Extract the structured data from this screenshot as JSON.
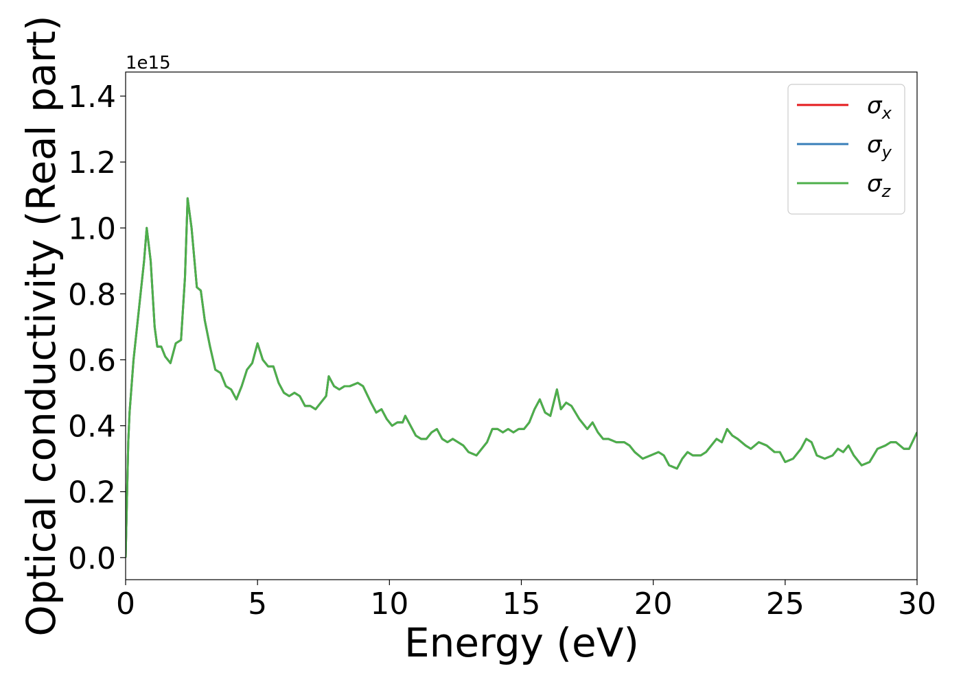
{
  "chart_data": {
    "type": "line",
    "xlabel": "Energy (eV)",
    "ylabel": "Optical conductivity (Real part)",
    "y_offset_label": "1e15",
    "x": [
      0,
      0.1,
      0.15,
      0.3,
      0.5,
      0.7,
      0.8,
      0.95,
      1.1,
      1.2,
      1.35,
      1.5,
      1.7,
      1.9,
      2.1,
      2.25,
      2.35,
      2.5,
      2.7,
      2.85,
      3.0,
      3.2,
      3.4,
      3.6,
      3.8,
      4.0,
      4.2,
      4.4,
      4.6,
      4.8,
      5.0,
      5.2,
      5.4,
      5.6,
      5.8,
      6.0,
      6.2,
      6.4,
      6.6,
      6.8,
      7.0,
      7.2,
      7.4,
      7.6,
      7.7,
      7.9,
      8.1,
      8.3,
      8.5,
      8.8,
      9.0,
      9.3,
      9.5,
      9.7,
      9.9,
      10.1,
      10.3,
      10.5,
      10.6,
      10.8,
      11.0,
      11.2,
      11.4,
      11.6,
      11.8,
      12.0,
      12.2,
      12.4,
      12.6,
      12.8,
      13.0,
      13.3,
      13.5,
      13.7,
      13.9,
      14.1,
      14.3,
      14.5,
      14.7,
      14.9,
      15.1,
      15.3,
      15.5,
      15.7,
      15.9,
      16.1,
      16.35,
      16.5,
      16.7,
      16.9,
      17.2,
      17.5,
      17.7,
      17.9,
      18.1,
      18.3,
      18.6,
      18.9,
      19.1,
      19.3,
      19.6,
      19.9,
      20.2,
      20.4,
      20.6,
      20.9,
      21.1,
      21.3,
      21.5,
      21.8,
      22.0,
      22.2,
      22.4,
      22.6,
      22.8,
      23.0,
      23.2,
      23.5,
      23.7,
      24.0,
      24.3,
      24.6,
      24.8,
      25.0,
      25.3,
      25.6,
      25.8,
      26.0,
      26.2,
      26.5,
      26.8,
      27.0,
      27.2,
      27.4,
      27.6,
      27.9,
      28.2,
      28.5,
      28.8,
      29.0,
      29.2,
      29.5,
      29.7,
      30.0
    ],
    "series": [
      {
        "name": "σx",
        "color": "#e41a1c",
        "values": [
          0,
          0.35,
          0.44,
          0.6,
          0.75,
          0.9,
          1.0,
          0.9,
          0.7,
          0.64,
          0.64,
          0.61,
          0.59,
          0.65,
          0.66,
          0.85,
          1.09,
          1.0,
          0.82,
          0.81,
          0.72,
          0.64,
          0.57,
          0.56,
          0.52,
          0.51,
          0.48,
          0.52,
          0.57,
          0.59,
          0.65,
          0.6,
          0.58,
          0.58,
          0.53,
          0.5,
          0.49,
          0.5,
          0.49,
          0.46,
          0.46,
          0.45,
          0.47,
          0.49,
          0.55,
          0.52,
          0.51,
          0.52,
          0.52,
          0.53,
          0.52,
          0.47,
          0.44,
          0.45,
          0.42,
          0.4,
          0.41,
          0.41,
          0.43,
          0.4,
          0.37,
          0.36,
          0.36,
          0.38,
          0.39,
          0.36,
          0.35,
          0.36,
          0.35,
          0.34,
          0.32,
          0.31,
          0.33,
          0.35,
          0.39,
          0.39,
          0.38,
          0.39,
          0.38,
          0.39,
          0.39,
          0.41,
          0.45,
          0.48,
          0.44,
          0.43,
          0.51,
          0.45,
          0.47,
          0.46,
          0.42,
          0.39,
          0.41,
          0.38,
          0.36,
          0.36,
          0.35,
          0.35,
          0.34,
          0.32,
          0.3,
          0.31,
          0.32,
          0.31,
          0.28,
          0.27,
          0.3,
          0.32,
          0.31,
          0.31,
          0.32,
          0.34,
          0.36,
          0.35,
          0.39,
          0.37,
          0.36,
          0.34,
          0.33,
          0.35,
          0.34,
          0.32,
          0.32,
          0.29,
          0.3,
          0.33,
          0.36,
          0.35,
          0.31,
          0.3,
          0.31,
          0.33,
          0.32,
          0.34,
          0.31,
          0.28,
          0.29,
          0.33,
          0.34,
          0.35,
          0.35,
          0.33,
          0.33,
          0.38
        ]
      },
      {
        "name": "σy",
        "color": "#377eb8",
        "values": [
          0,
          0.35,
          0.44,
          0.6,
          0.75,
          0.9,
          1.0,
          0.9,
          0.7,
          0.64,
          0.64,
          0.61,
          0.59,
          0.65,
          0.66,
          0.85,
          1.09,
          1.0,
          0.82,
          0.81,
          0.72,
          0.64,
          0.57,
          0.56,
          0.52,
          0.51,
          0.48,
          0.52,
          0.57,
          0.59,
          0.65,
          0.6,
          0.58,
          0.58,
          0.53,
          0.5,
          0.49,
          0.5,
          0.49,
          0.46,
          0.46,
          0.45,
          0.47,
          0.49,
          0.55,
          0.52,
          0.51,
          0.52,
          0.52,
          0.53,
          0.52,
          0.47,
          0.44,
          0.45,
          0.42,
          0.4,
          0.41,
          0.41,
          0.43,
          0.4,
          0.37,
          0.36,
          0.36,
          0.38,
          0.39,
          0.36,
          0.35,
          0.36,
          0.35,
          0.34,
          0.32,
          0.31,
          0.33,
          0.35,
          0.39,
          0.39,
          0.38,
          0.39,
          0.38,
          0.39,
          0.39,
          0.41,
          0.45,
          0.48,
          0.44,
          0.43,
          0.51,
          0.45,
          0.47,
          0.46,
          0.42,
          0.39,
          0.41,
          0.38,
          0.36,
          0.36,
          0.35,
          0.35,
          0.34,
          0.32,
          0.3,
          0.31,
          0.32,
          0.31,
          0.28,
          0.27,
          0.3,
          0.32,
          0.31,
          0.31,
          0.32,
          0.34,
          0.36,
          0.35,
          0.39,
          0.37,
          0.36,
          0.34,
          0.33,
          0.35,
          0.34,
          0.32,
          0.32,
          0.29,
          0.3,
          0.33,
          0.36,
          0.35,
          0.31,
          0.3,
          0.31,
          0.33,
          0.32,
          0.34,
          0.31,
          0.28,
          0.29,
          0.33,
          0.34,
          0.35,
          0.35,
          0.33,
          0.33,
          0.38
        ]
      },
      {
        "name": "σz",
        "color": "#4daf4a",
        "values": [
          0,
          0.35,
          0.44,
          0.6,
          0.75,
          0.9,
          1.0,
          0.9,
          0.7,
          0.64,
          0.64,
          0.61,
          0.59,
          0.65,
          0.66,
          0.85,
          1.09,
          1.0,
          0.82,
          0.81,
          0.72,
          0.64,
          0.57,
          0.56,
          0.52,
          0.51,
          0.48,
          0.52,
          0.57,
          0.59,
          0.65,
          0.6,
          0.58,
          0.58,
          0.53,
          0.5,
          0.49,
          0.5,
          0.49,
          0.46,
          0.46,
          0.45,
          0.47,
          0.49,
          0.55,
          0.52,
          0.51,
          0.52,
          0.52,
          0.53,
          0.52,
          0.47,
          0.44,
          0.45,
          0.42,
          0.4,
          0.41,
          0.41,
          0.43,
          0.4,
          0.37,
          0.36,
          0.36,
          0.38,
          0.39,
          0.36,
          0.35,
          0.36,
          0.35,
          0.34,
          0.32,
          0.31,
          0.33,
          0.35,
          0.39,
          0.39,
          0.38,
          0.39,
          0.38,
          0.39,
          0.39,
          0.41,
          0.45,
          0.48,
          0.44,
          0.43,
          0.51,
          0.45,
          0.47,
          0.46,
          0.42,
          0.39,
          0.41,
          0.38,
          0.36,
          0.36,
          0.35,
          0.35,
          0.34,
          0.32,
          0.3,
          0.31,
          0.32,
          0.31,
          0.28,
          0.27,
          0.3,
          0.32,
          0.31,
          0.31,
          0.32,
          0.34,
          0.36,
          0.35,
          0.39,
          0.37,
          0.36,
          0.34,
          0.33,
          0.35,
          0.34,
          0.32,
          0.32,
          0.29,
          0.3,
          0.33,
          0.36,
          0.35,
          0.31,
          0.3,
          0.31,
          0.33,
          0.32,
          0.34,
          0.31,
          0.28,
          0.29,
          0.33,
          0.34,
          0.35,
          0.35,
          0.33,
          0.33,
          0.38
        ]
      }
    ],
    "xlim": [
      0,
      30
    ],
    "xticks": [
      0,
      5,
      10,
      15,
      20,
      25,
      30
    ],
    "ylim": [
      -0.067,
      1.473
    ],
    "yticks": [
      {
        "value": 0,
        "label": "0.0"
      },
      0.2,
      0.4,
      0.6,
      0.8,
      {
        "value": 1,
        "label": "1.0"
      },
      1.2,
      1.4
    ],
    "legend": "upper right"
  }
}
